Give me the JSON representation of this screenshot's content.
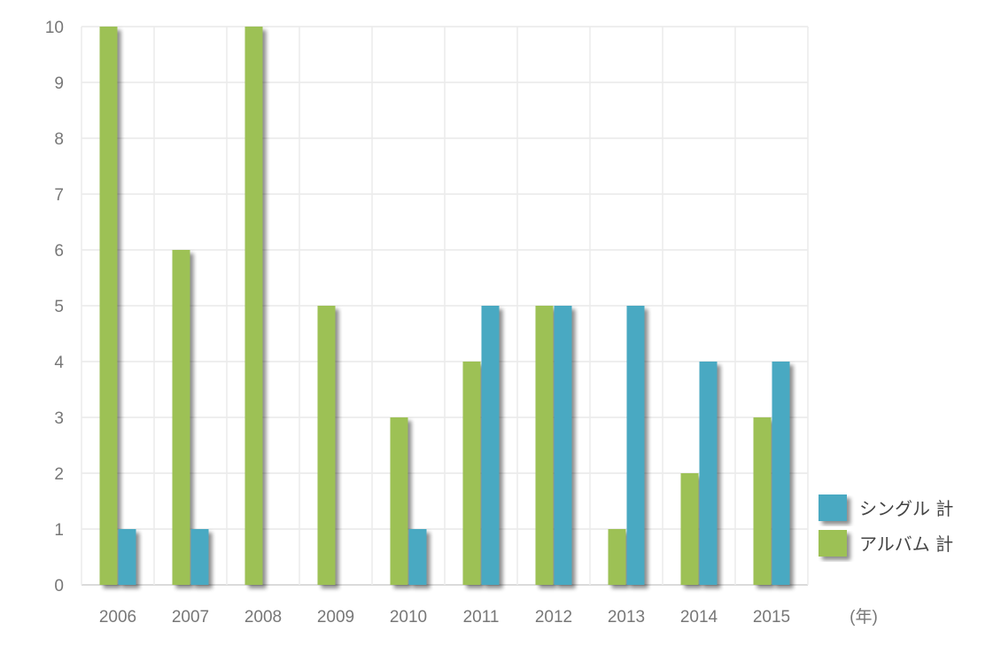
{
  "chart_data": {
    "type": "bar",
    "categories": [
      "2006",
      "2007",
      "2008",
      "2009",
      "2010",
      "2011",
      "2012",
      "2013",
      "2014",
      "2015"
    ],
    "series": [
      {
        "name": "アルバム 計",
        "color": "#9dc154",
        "values": [
          10,
          6,
          10,
          5,
          3,
          4,
          5,
          1,
          2,
          3
        ]
      },
      {
        "name": "シングル 計",
        "color": "#4aa9c2",
        "values": [
          1,
          1,
          0,
          0,
          1,
          5,
          5,
          5,
          4,
          4
        ]
      }
    ],
    "ylim": [
      0,
      10
    ],
    "yticks": [
      0,
      1,
      2,
      3,
      4,
      5,
      6,
      7,
      8,
      9,
      10
    ],
    "x_unit_label": "(年)",
    "grid": true,
    "legend_placement": "bottom-right",
    "legend_order": [
      "シングル 計",
      "アルバム 計"
    ]
  }
}
